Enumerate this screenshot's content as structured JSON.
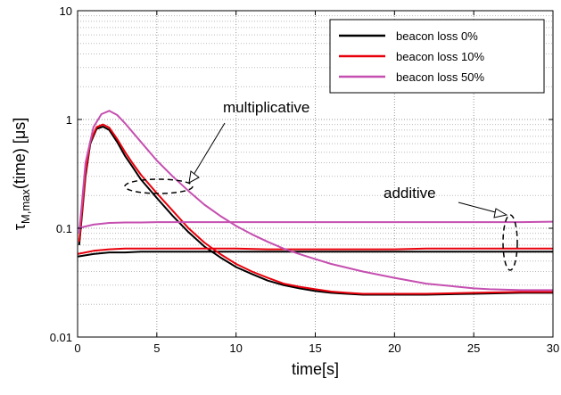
{
  "chart_data": {
    "type": "line",
    "title": "",
    "xlabel": "time[s]",
    "ylabel_main": "τ",
    "ylabel_sub": "M,max",
    "ylabel_rest": "(time) [μs]",
    "xlim": [
      0,
      30
    ],
    "ylim": [
      0.01,
      10
    ],
    "yscale": "log",
    "grid": true,
    "legend_position": "top-right",
    "xticks": [
      0,
      5,
      10,
      15,
      20,
      25,
      30
    ],
    "xtick_labels": [
      "0",
      "5",
      "10",
      "15",
      "20",
      "25",
      "30"
    ],
    "yticks": [
      0.01,
      0.1,
      1,
      10
    ],
    "ytick_labels": [
      "0.01",
      "0.1",
      "1",
      "10"
    ],
    "annotations": {
      "multiplicative": "multiplicative",
      "additive": "additive"
    },
    "series": [
      {
        "name": "beacon loss 0%",
        "color": "#000000",
        "curves": [
          {
            "x": [
              0.1,
              0.5,
              0.8,
              1.2,
              1.6,
              2.0,
              2.5,
              3.0,
              3.5,
              4.0,
              5.0,
              6.0,
              7.0,
              8.0,
              9.0,
              10.0,
              11.0,
              12.0,
              13.0,
              14.0,
              15.0,
              16.0,
              17.0,
              18.0,
              19.0,
              20.0,
              22.0,
              25.0,
              28.0,
              30.0
            ],
            "y": [
              0.07,
              0.3,
              0.6,
              0.82,
              0.86,
              0.8,
              0.62,
              0.46,
              0.36,
              0.28,
              0.19,
              0.13,
              0.092,
              0.068,
              0.054,
              0.044,
              0.038,
              0.033,
              0.03,
              0.028,
              0.0265,
              0.0255,
              0.025,
              0.0245,
              0.0245,
              0.0245,
              0.0245,
              0.025,
              0.0255,
              0.0255
            ]
          },
          {
            "x": [
              0,
              1,
              2,
              3,
              4,
              5,
              6,
              8,
              10,
              12,
              15,
              18,
              20,
              22,
              25,
              28,
              30
            ],
            "y": [
              0.055,
              0.058,
              0.06,
              0.06,
              0.061,
              0.061,
              0.061,
              0.061,
              0.061,
              0.061,
              0.061,
              0.061,
              0.061,
              0.061,
              0.061,
              0.061,
              0.061
            ]
          }
        ]
      },
      {
        "name": "beacon loss 10%",
        "color": "#e8000b",
        "curves": [
          {
            "x": [
              0.1,
              0.5,
              0.8,
              1.2,
              1.6,
              2.0,
              2.5,
              3.0,
              3.5,
              4.0,
              5.0,
              6.0,
              7.0,
              8.0,
              9.0,
              10.0,
              11.0,
              12.0,
              13.0,
              14.0,
              15.0,
              16.0,
              17.0,
              18.0,
              19.0,
              20.0,
              22.0,
              25.0,
              28.0,
              30.0
            ],
            "y": [
              0.075,
              0.32,
              0.62,
              0.85,
              0.9,
              0.84,
              0.66,
              0.5,
              0.39,
              0.31,
              0.21,
              0.145,
              0.1,
              0.074,
              0.058,
              0.047,
              0.04,
              0.035,
              0.031,
              0.029,
              0.0275,
              0.0262,
              0.0255,
              0.025,
              0.025,
              0.025,
              0.025,
              0.0255,
              0.026,
              0.026
            ]
          },
          {
            "x": [
              0,
              1,
              2,
              3,
              4,
              5,
              6,
              8,
              10,
              12,
              15,
              18,
              20,
              22,
              25,
              28,
              30
            ],
            "y": [
              0.058,
              0.062,
              0.064,
              0.065,
              0.065,
              0.065,
              0.065,
              0.065,
              0.065,
              0.064,
              0.064,
              0.064,
              0.064,
              0.065,
              0.065,
              0.065,
              0.065
            ]
          }
        ]
      },
      {
        "name": "beacon loss 50%",
        "color": "#c54fb0",
        "curves": [
          {
            "x": [
              0.1,
              0.5,
              1.0,
              1.5,
              2.0,
              2.5,
              3.0,
              4.0,
              5.0,
              6.0,
              7.0,
              8.0,
              9.0,
              10.0,
              11.0,
              12.0,
              13.0,
              14.0,
              15.0,
              16.0,
              18.0,
              20.0,
              22.0,
              24.0,
              25.0,
              26.0,
              28.0,
              30.0
            ],
            "y": [
              0.09,
              0.4,
              0.85,
              1.12,
              1.2,
              1.1,
              0.92,
              0.62,
              0.42,
              0.3,
              0.22,
              0.165,
              0.13,
              0.105,
              0.088,
              0.075,
              0.065,
              0.058,
              0.052,
              0.047,
              0.04,
              0.035,
              0.031,
              0.029,
              0.028,
              0.0275,
              0.027,
              0.027
            ]
          },
          {
            "x": [
              0,
              1,
              2,
              3,
              4,
              5,
              6,
              8,
              10,
              12,
              15,
              18,
              20,
              22,
              25,
              28,
              30
            ],
            "y": [
              0.1,
              0.108,
              0.112,
              0.113,
              0.113,
              0.114,
              0.114,
              0.114,
              0.114,
              0.114,
              0.114,
              0.114,
              0.114,
              0.114,
              0.114,
              0.114,
              0.115
            ]
          }
        ]
      }
    ]
  }
}
